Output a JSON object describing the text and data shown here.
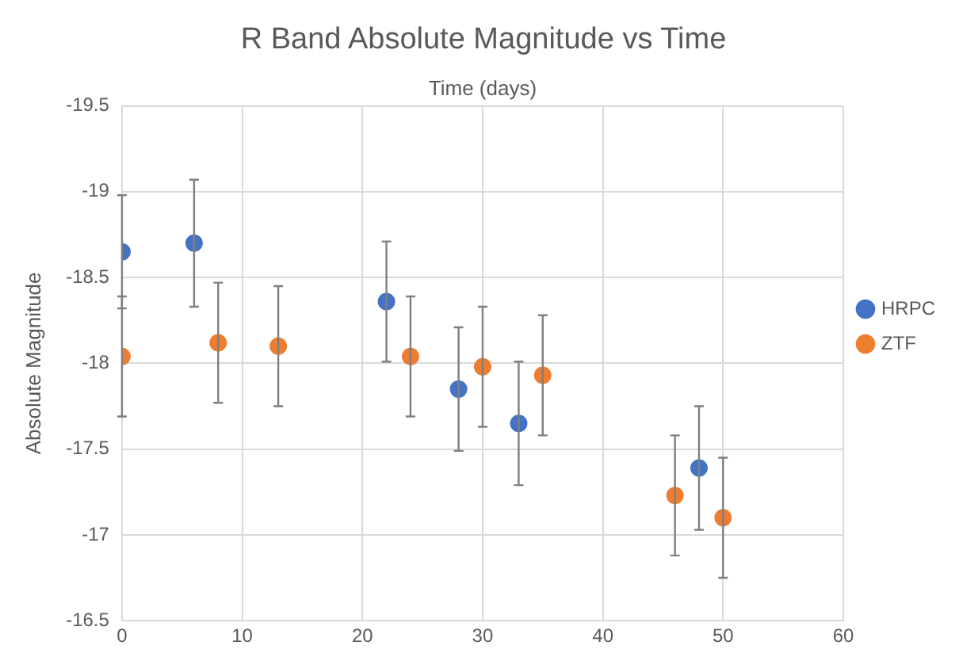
{
  "chart_data": {
    "type": "scatter",
    "title": "R Band Absolute Magnitude vs Time",
    "xlabel": "Time (days)",
    "ylabel": "Absolute Magnitude",
    "xlim": [
      0,
      60
    ],
    "xticks": [
      0,
      10,
      20,
      30,
      40,
      50,
      60
    ],
    "ylim": [
      -16.5,
      -19.5
    ],
    "yticks": [
      -19.5,
      -19,
      -18.5,
      -18,
      -17.5,
      -17,
      -16.5
    ],
    "grid": true,
    "legend": "right",
    "marker": "circle",
    "series": [
      {
        "name": "HRPC",
        "color": "#4472c4",
        "x": [
          0,
          6,
          22,
          28,
          33,
          48
        ],
        "values": [
          -18.65,
          -18.7,
          -18.36,
          -17.85,
          -17.65,
          -17.39
        ],
        "errors": [
          0.33,
          0.37,
          0.35,
          0.36,
          0.36,
          0.36
        ]
      },
      {
        "name": "ZTF",
        "color": "#ed7d31",
        "x": [
          0,
          8,
          13,
          24,
          30,
          35,
          46,
          50
        ],
        "values": [
          -18.04,
          -18.12,
          -18.1,
          -18.04,
          -17.98,
          -17.93,
          -17.23,
          -17.1
        ],
        "errors": [
          0.35,
          0.35,
          0.35,
          0.35,
          0.35,
          0.35,
          0.35,
          0.35
        ]
      }
    ]
  }
}
